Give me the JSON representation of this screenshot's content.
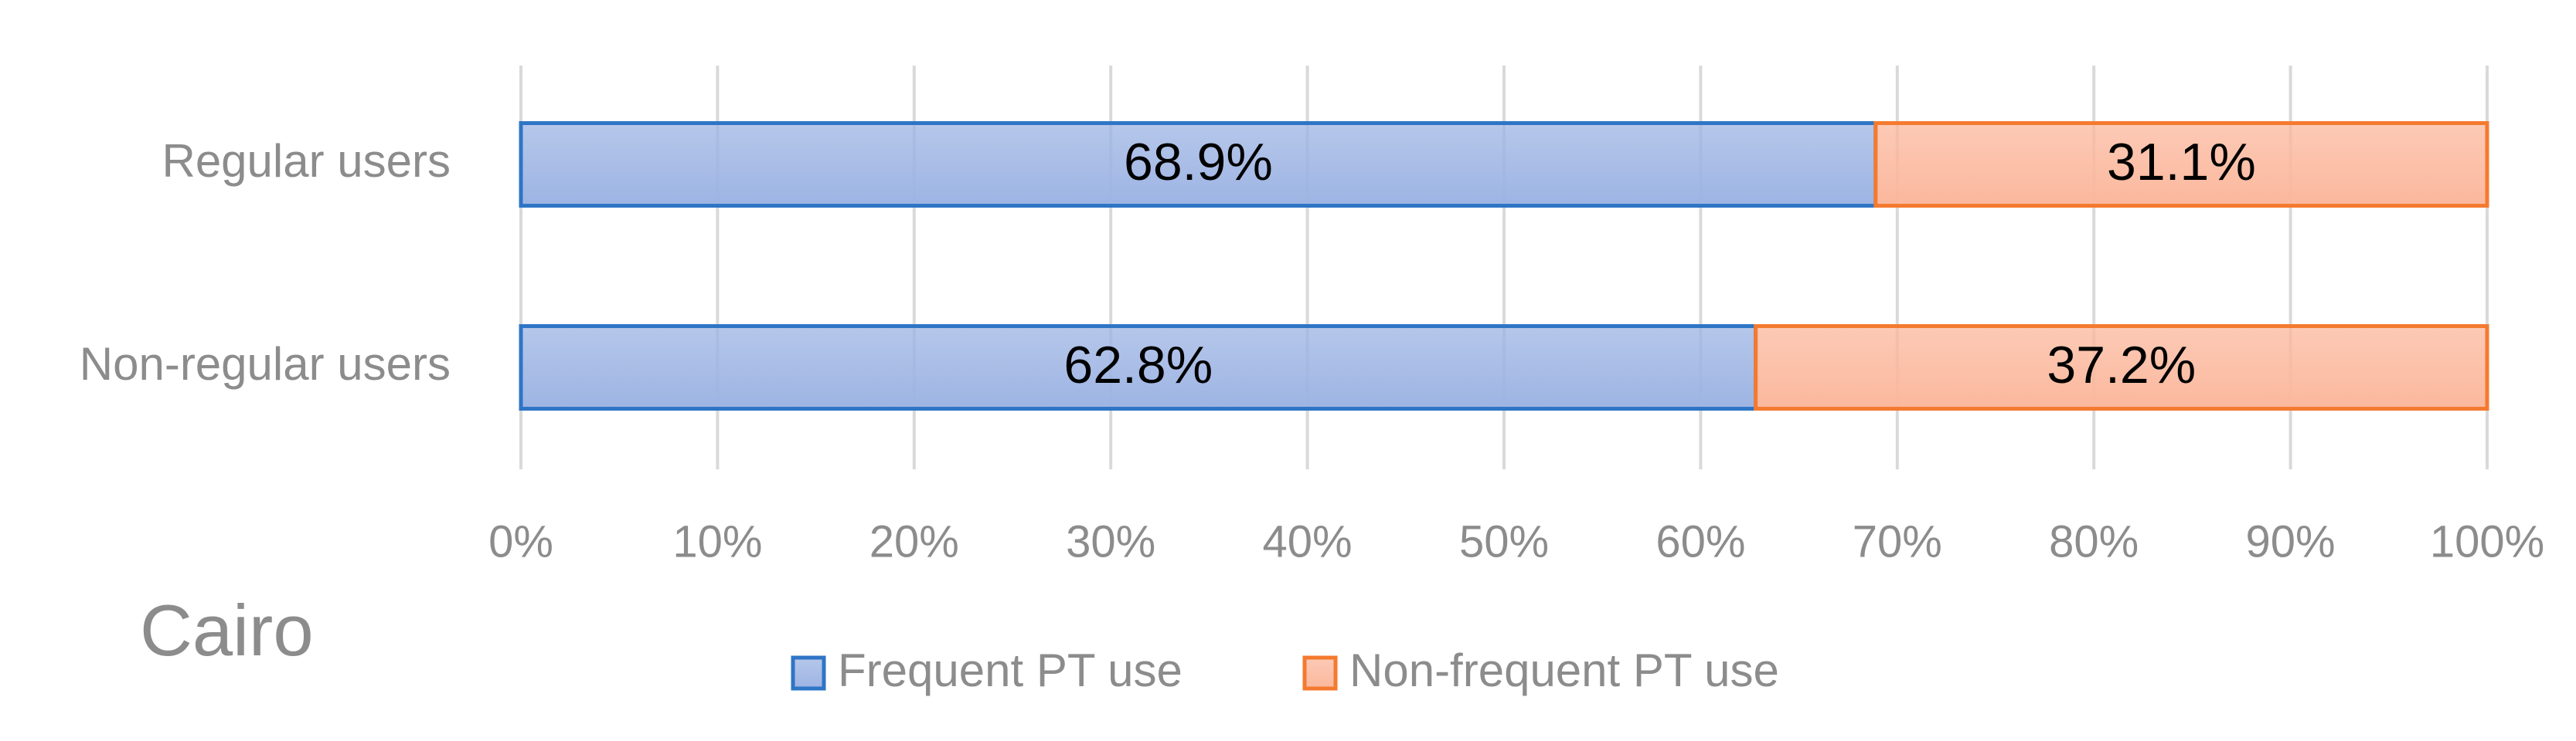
{
  "chart_data": {
    "type": "stacked_barh",
    "title": "Cairo",
    "categories": [
      "Regular users",
      "Non-regular users"
    ],
    "series": [
      {
        "name": "Frequent PT use",
        "color": "#9db4e3",
        "edgecolor": "#2e75c6",
        "values": [
          68.9,
          62.8
        ],
        "value_labels": [
          "68.9%",
          "62.8%"
        ]
      },
      {
        "name": "Non-frequent PT use",
        "color": "#fbb89d",
        "edgecolor": "#f47a2f",
        "values": [
          31.1,
          37.2
        ],
        "value_labels": [
          "31.1%",
          "37.2%"
        ]
      }
    ],
    "xlim": [
      0,
      100
    ],
    "xticks": [
      {
        "value": 0,
        "label": "0%"
      },
      {
        "value": 10,
        "label": "10%"
      },
      {
        "value": 20,
        "label": "20%"
      },
      {
        "value": 30,
        "label": "30%"
      },
      {
        "value": 40,
        "label": "40%"
      },
      {
        "value": 50,
        "label": "50%"
      },
      {
        "value": 60,
        "label": "60%"
      },
      {
        "value": 70,
        "label": "70%"
      },
      {
        "value": 80,
        "label": "80%"
      },
      {
        "value": 90,
        "label": "90%"
      },
      {
        "value": 100,
        "label": "100%"
      }
    ],
    "grid": true,
    "legend": "bottom"
  }
}
